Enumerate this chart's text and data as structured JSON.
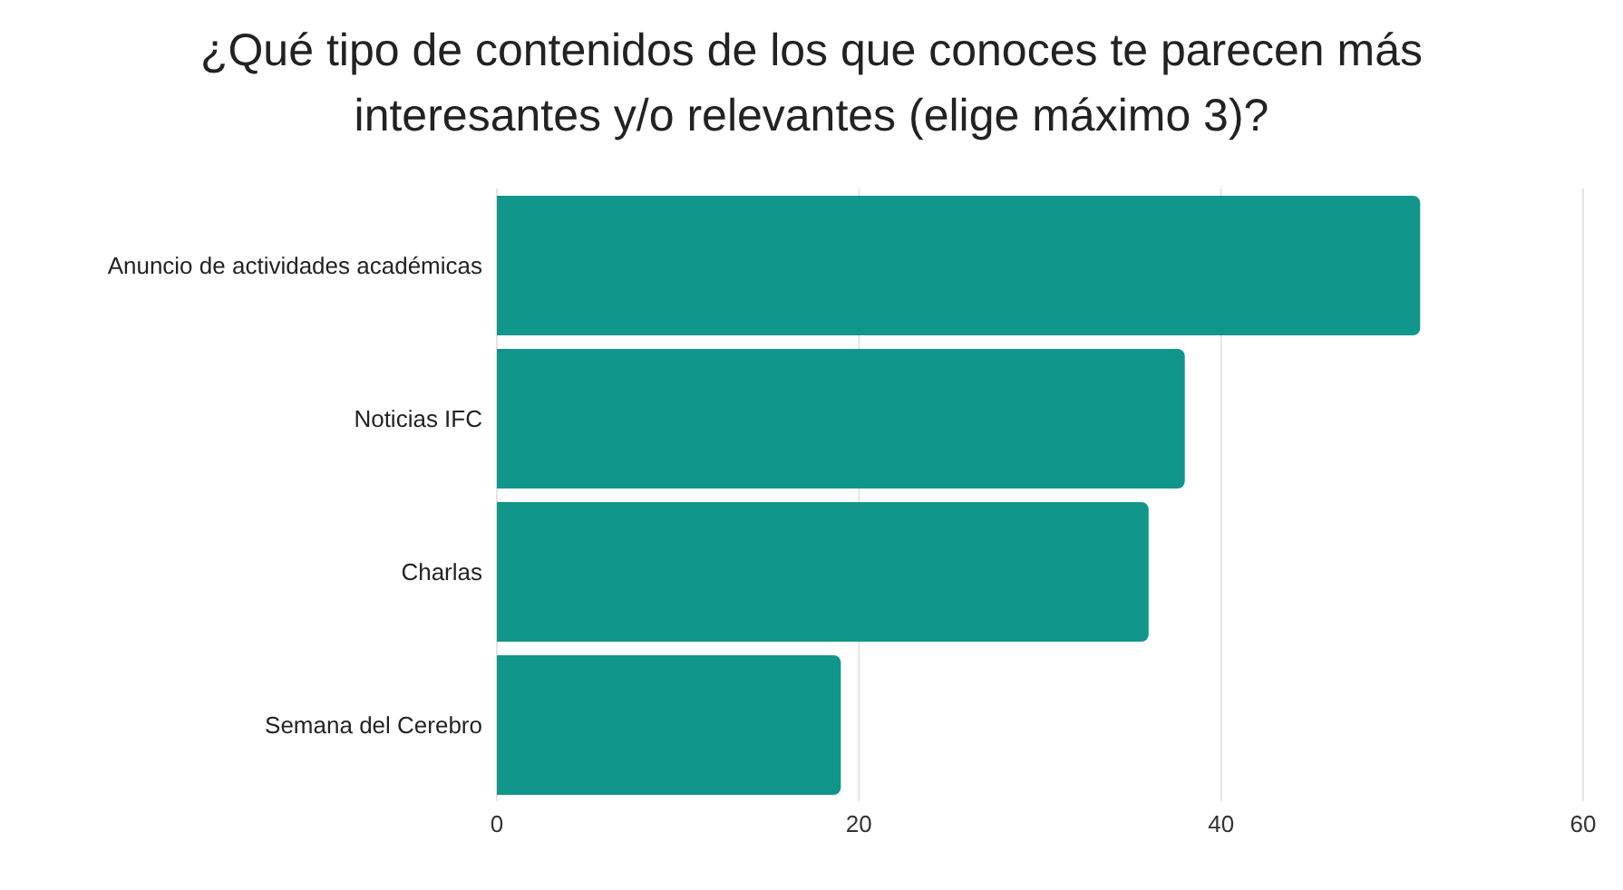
{
  "chart_data": {
    "type": "bar",
    "orientation": "horizontal",
    "title": "¿Qué tipo de contenidos de los que conoces te parecen más interesantes y/o relevantes (elige máximo 3)?",
    "categories": [
      "Anuncio de actividades académicas",
      "Noticias IFC",
      "Charlas",
      "Semana del Cerebro"
    ],
    "values": [
      51,
      38,
      36,
      19
    ],
    "color": "#11968b",
    "xlim": [
      0,
      60
    ],
    "xticks": [
      0,
      20,
      40,
      60
    ],
    "grid": "x"
  }
}
